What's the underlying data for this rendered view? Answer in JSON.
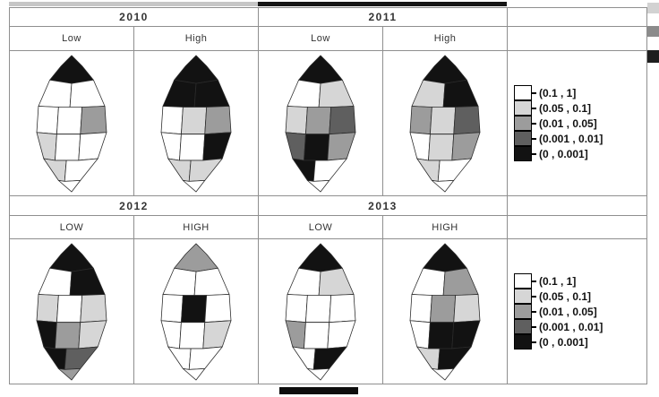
{
  "top_bar": {
    "segments": [
      {
        "color": "#c6c6c6"
      },
      {
        "color": "#161616"
      }
    ]
  },
  "edge_swatches": [
    {
      "color": "#d2d2d2"
    },
    {
      "color": "#8b8b8b"
    },
    {
      "color": "#1e1e1e"
    }
  ],
  "bottom_bar": {
    "color": "#0d0d0d"
  },
  "panel": {
    "groups": [
      {
        "year": "2010",
        "cols": [
          "Low",
          "High"
        ]
      },
      {
        "year": "2011",
        "cols": [
          "Low",
          "High"
        ]
      },
      {
        "year": "2012",
        "cols": [
          "LOW",
          "HIGH"
        ]
      },
      {
        "year": "2013",
        "cols": [
          "LOW",
          "HIGH"
        ]
      }
    ]
  },
  "legend": {
    "entries": [
      {
        "label": "(0.1 , 1]",
        "color": "#ffffff"
      },
      {
        "label": "(0.05 , 0.1]",
        "color": "#d6d6d6"
      },
      {
        "label": "(0.01 , 0.05]",
        "color": "#9c9c9c"
      },
      {
        "label": "(0.001 , 0.01]",
        "color": "#5f5f5f"
      },
      {
        "label": "(0 , 0.001]",
        "color": "#121212"
      }
    ]
  },
  "maps": {
    "y2010_low": {
      "fills": [
        "#121212",
        "#ffffff",
        "#ffffff",
        "#ffffff",
        "#ffffff",
        "#9c9c9c",
        "#d6d6d6",
        "#ffffff",
        "#ffffff",
        "#d6d6d6",
        "#ffffff",
        "#ffffff"
      ]
    },
    "y2010_high": {
      "fills": [
        "#121212",
        "#121212",
        "#121212",
        "#ffffff",
        "#d6d6d6",
        "#9c9c9c",
        "#ffffff",
        "#ffffff",
        "#121212",
        "#d6d6d6",
        "#d6d6d6",
        "#ffffff"
      ]
    },
    "y2011_low": {
      "fills": [
        "#121212",
        "#ffffff",
        "#d6d6d6",
        "#d6d6d6",
        "#9c9c9c",
        "#5f5f5f",
        "#5f5f5f",
        "#121212",
        "#9c9c9c",
        "#121212",
        "#ffffff",
        "#ffffff"
      ]
    },
    "y2011_high": {
      "fills": [
        "#121212",
        "#d6d6d6",
        "#121212",
        "#9c9c9c",
        "#d6d6d6",
        "#5f5f5f",
        "#ffffff",
        "#d6d6d6",
        "#9c9c9c",
        "#d6d6d6",
        "#ffffff",
        "#ffffff"
      ]
    },
    "y2012_low": {
      "fills": [
        "#121212",
        "#ffffff",
        "#121212",
        "#d6d6d6",
        "#ffffff",
        "#d6d6d6",
        "#121212",
        "#9c9c9c",
        "#d6d6d6",
        "#121212",
        "#5f5f5f",
        "#9c9c9c"
      ]
    },
    "y2012_high": {
      "fills": [
        "#9c9c9c",
        "#ffffff",
        "#ffffff",
        "#ffffff",
        "#121212",
        "#ffffff",
        "#ffffff",
        "#ffffff",
        "#d6d6d6",
        "#ffffff",
        "#ffffff",
        "#ffffff"
      ]
    },
    "y2013_low": {
      "fills": [
        "#121212",
        "#ffffff",
        "#d6d6d6",
        "#ffffff",
        "#ffffff",
        "#ffffff",
        "#9c9c9c",
        "#ffffff",
        "#ffffff",
        "#ffffff",
        "#121212",
        "#ffffff"
      ]
    },
    "y2013_high": {
      "fills": [
        "#121212",
        "#ffffff",
        "#9c9c9c",
        "#ffffff",
        "#9c9c9c",
        "#d6d6d6",
        "#ffffff",
        "#121212",
        "#121212",
        "#d6d6d6",
        "#121212",
        "#ffffff"
      ]
    }
  },
  "chart_data": {
    "type": "heatmap",
    "subtype": "faceted-choropleth-maps",
    "facets": [
      {
        "year": "2010",
        "columns": [
          "Low",
          "High"
        ]
      },
      {
        "year": "2011",
        "columns": [
          "Low",
          "High"
        ]
      },
      {
        "year": "2012",
        "columns": [
          "LOW",
          "HIGH"
        ]
      },
      {
        "year": "2013",
        "columns": [
          "LOW",
          "HIGH"
        ]
      }
    ],
    "legend_bins": [
      "(0.1 , 1]",
      "(0.05 , 0.1]",
      "(0.01 , 0.05]",
      "(0.001 , 0.01]",
      "(0 , 0.001]"
    ],
    "legend_colors": [
      "#ffffff",
      "#d6d6d6",
      "#9c9c9c",
      "#5f5f5f",
      "#121212"
    ],
    "legend_position": "right",
    "notes_visible_on_screen": "8 district-level grayscale choropleth maps of the same island region arranged 4x2; darker district = smaller value bin"
  }
}
